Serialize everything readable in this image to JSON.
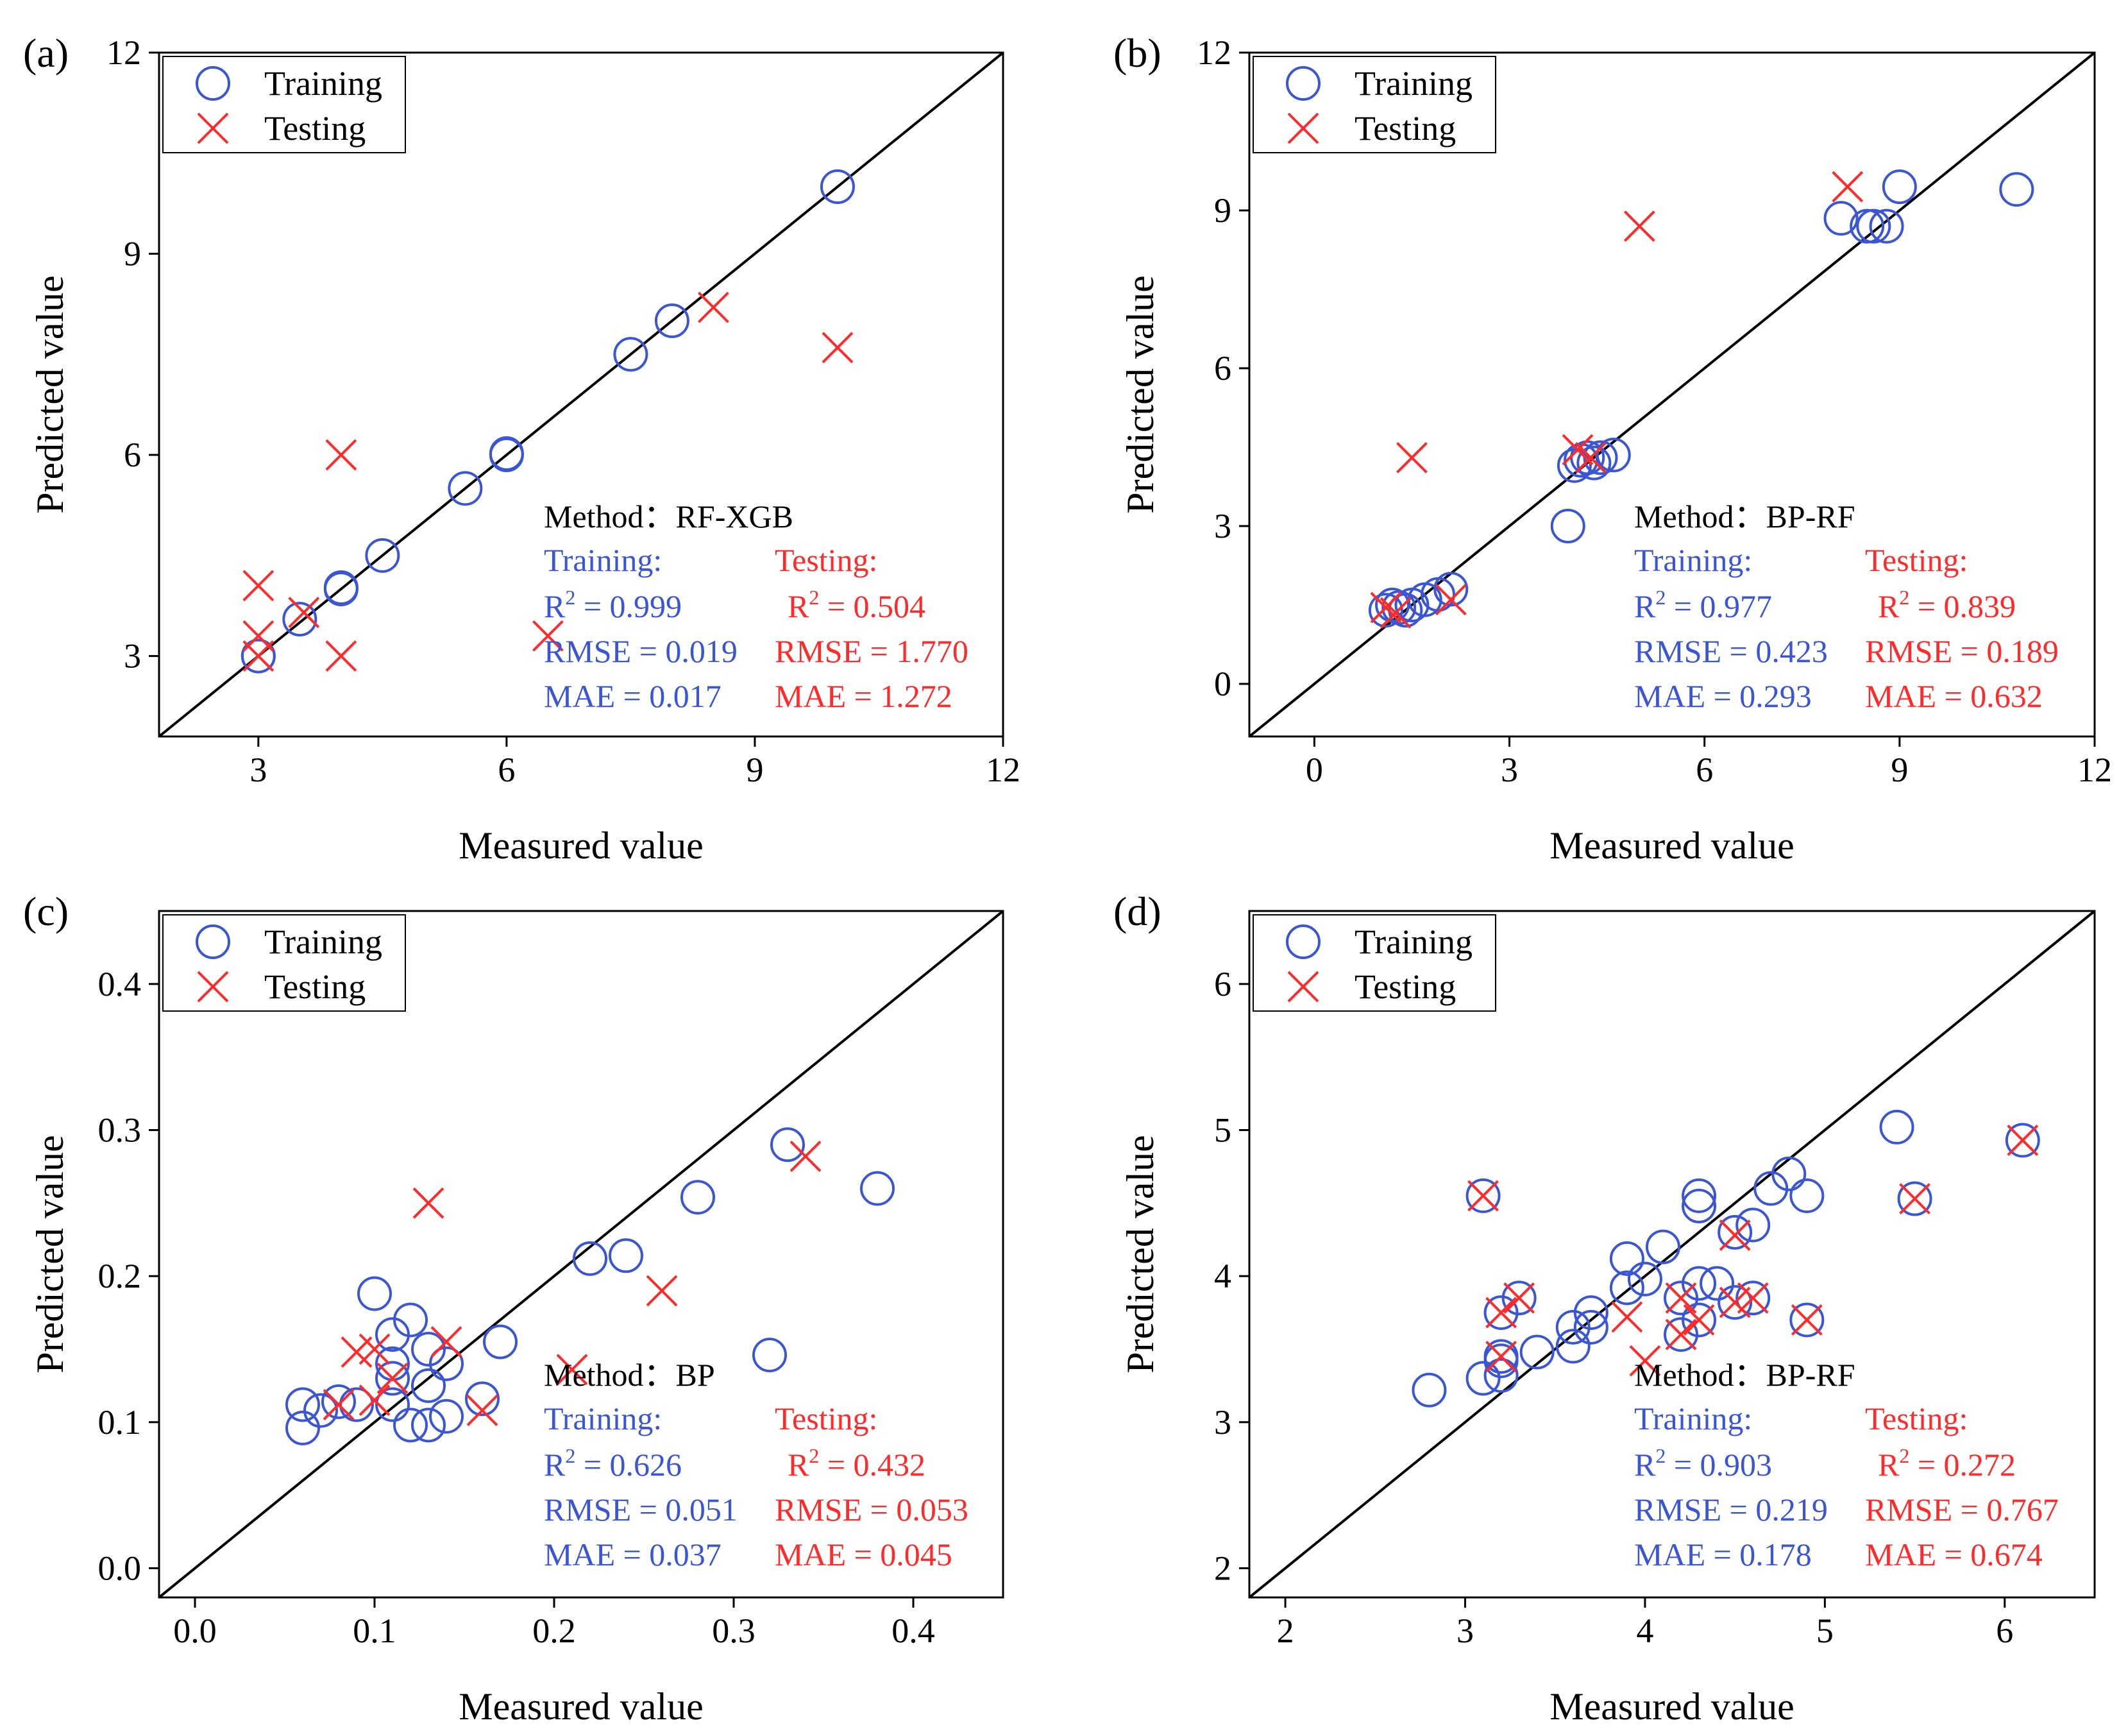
{
  "colors": {
    "training": "#3a56d4",
    "testing": "#ff2a2a",
    "axis": "#000000"
  },
  "chart_data": [
    {
      "type": "scatter",
      "panel_label": "(a)",
      "method_label": "Method：",
      "method": "RF-XGB",
      "xlabel": "Measured value",
      "ylabel": "Predicted value",
      "xlim": [
        1.8,
        12
      ],
      "ylim": [
        1.8,
        12
      ],
      "xticks": [
        3,
        6,
        9,
        12
      ],
      "yticks": [
        3,
        6,
        9,
        12
      ],
      "xtick_labels": [
        "3",
        "6",
        "9",
        "12"
      ],
      "ytick_labels": [
        "3",
        "6",
        "9",
        "12"
      ],
      "legend": {
        "training": "Training",
        "testing": "Testing"
      },
      "stats": {
        "training_title": "Training:",
        "testing_title": "Testing:",
        "training": [
          "R² = 0.999",
          "RMSE = 0.019",
          "MAE = 0.017"
        ],
        "testing": [
          "R² = 0.504",
          "RMSE = 1.770",
          "MAE = 1.272"
        ]
      },
      "training_points": [
        [
          3,
          3
        ],
        [
          3,
          3
        ],
        [
          3.5,
          3.55
        ],
        [
          4,
          4
        ],
        [
          4,
          4.02
        ],
        [
          4.5,
          4.5
        ],
        [
          5.5,
          5.5
        ],
        [
          6,
          6
        ],
        [
          6,
          6.02
        ],
        [
          7.5,
          7.5
        ],
        [
          8,
          8
        ],
        [
          10,
          10
        ]
      ],
      "testing_points": [
        [
          3,
          4.05
        ],
        [
          3,
          3.3
        ],
        [
          3,
          3
        ],
        [
          3.55,
          3.65
        ],
        [
          4,
          6
        ],
        [
          4,
          3
        ],
        [
          6.5,
          3.3
        ],
        [
          8.5,
          8.2
        ],
        [
          10,
          7.6
        ]
      ]
    },
    {
      "type": "scatter",
      "panel_label": "(b)",
      "method_label": "Method：",
      "method": "BP-RF",
      "xlabel": "Measured value",
      "ylabel": "Predicted value",
      "xlim": [
        -1,
        12
      ],
      "ylim": [
        -1,
        12
      ],
      "xticks": [
        0,
        3,
        6,
        9,
        12
      ],
      "yticks": [
        0,
        3,
        6,
        9,
        12
      ],
      "xtick_labels": [
        "0",
        "3",
        "6",
        "9",
        "12"
      ],
      "ytick_labels": [
        "0",
        "3",
        "6",
        "9",
        "12"
      ],
      "legend": {
        "training": "Training",
        "testing": "Testing"
      },
      "stats": {
        "training_title": "Training:",
        "testing_title": "Testing:",
        "training": [
          "R² = 0.977",
          "RMSE = 0.423",
          "MAE = 0.293"
        ],
        "testing": [
          "R² = 0.839",
          "RMSE = 0.189",
          "MAE = 0.632"
        ]
      },
      "training_points": [
        [
          1.1,
          1.4
        ],
        [
          1.2,
          1.5
        ],
        [
          1.3,
          1.45
        ],
        [
          1.4,
          1.4
        ],
        [
          1.5,
          1.5
        ],
        [
          1.7,
          1.6
        ],
        [
          1.9,
          1.7
        ],
        [
          2.1,
          1.8
        ],
        [
          3.9,
          3.0
        ],
        [
          4.0,
          4.15
        ],
        [
          4.1,
          4.25
        ],
        [
          4.2,
          4.3
        ],
        [
          4.3,
          4.2
        ],
        [
          4.4,
          4.3
        ],
        [
          4.6,
          4.35
        ],
        [
          8.1,
          8.85
        ],
        [
          8.5,
          8.7
        ],
        [
          8.6,
          8.7
        ],
        [
          8.8,
          8.7
        ],
        [
          9.0,
          9.45
        ],
        [
          10.8,
          9.4
        ]
      ],
      "testing_points": [
        [
          1.1,
          1.45
        ],
        [
          1.25,
          1.35
        ],
        [
          1.5,
          4.3
        ],
        [
          2.1,
          1.6
        ],
        [
          4.05,
          4.45
        ],
        [
          4.25,
          4.3
        ],
        [
          5.0,
          8.7
        ],
        [
          8.2,
          9.45
        ]
      ]
    },
    {
      "type": "scatter",
      "panel_label": "(c)",
      "method_label": "Method：",
      "method": "BP",
      "xlabel": "Measured value",
      "ylabel": "Predicted value",
      "xlim": [
        -0.02,
        0.45
      ],
      "ylim": [
        -0.02,
        0.45
      ],
      "xticks": [
        0.0,
        0.1,
        0.2,
        0.3,
        0.4
      ],
      "yticks": [
        0.0,
        0.1,
        0.2,
        0.3,
        0.4
      ],
      "xtick_labels": [
        "0.0",
        "0.1",
        "0.2",
        "0.3",
        "0.4"
      ],
      "ytick_labels": [
        "0.0",
        "0.1",
        "0.2",
        "0.3",
        "0.4"
      ],
      "legend": {
        "training": "Training",
        "testing": "Testing"
      },
      "stats": {
        "training_title": "Training:",
        "testing_title": "Testing:",
        "training": [
          "R² = 0.626",
          "RMSE = 0.051",
          "MAE = 0.037"
        ],
        "testing": [
          "R² = 0.432",
          "RMSE = 0.053",
          "MAE = 0.045"
        ]
      },
      "training_points": [
        [
          0.06,
          0.112
        ],
        [
          0.06,
          0.096
        ],
        [
          0.07,
          0.108
        ],
        [
          0.08,
          0.114
        ],
        [
          0.09,
          0.112
        ],
        [
          0.1,
          0.188
        ],
        [
          0.11,
          0.16
        ],
        [
          0.11,
          0.14
        ],
        [
          0.11,
          0.13
        ],
        [
          0.11,
          0.112
        ],
        [
          0.12,
          0.17
        ],
        [
          0.12,
          0.098
        ],
        [
          0.13,
          0.15
        ],
        [
          0.13,
          0.125
        ],
        [
          0.13,
          0.098
        ],
        [
          0.14,
          0.14
        ],
        [
          0.14,
          0.104
        ],
        [
          0.16,
          0.116
        ],
        [
          0.17,
          0.155
        ],
        [
          0.22,
          0.212
        ],
        [
          0.24,
          0.214
        ],
        [
          0.28,
          0.254
        ],
        [
          0.32,
          0.146
        ],
        [
          0.33,
          0.29
        ],
        [
          0.38,
          0.26
        ]
      ],
      "testing_points": [
        [
          0.08,
          0.112
        ],
        [
          0.09,
          0.148
        ],
        [
          0.1,
          0.15
        ],
        [
          0.1,
          0.115
        ],
        [
          0.11,
          0.13
        ],
        [
          0.13,
          0.25
        ],
        [
          0.14,
          0.155
        ],
        [
          0.16,
          0.108
        ],
        [
          0.21,
          0.136
        ],
        [
          0.26,
          0.19
        ],
        [
          0.34,
          0.282
        ]
      ]
    },
    {
      "type": "scatter",
      "panel_label": "(d)",
      "method_label": "Method：",
      "method": "BP-RF",
      "xlabel": "Measured value",
      "ylabel": "Predicted value",
      "xlim": [
        1.8,
        6.5
      ],
      "ylim": [
        1.8,
        6.5
      ],
      "xticks": [
        2,
        3,
        4,
        5,
        6
      ],
      "yticks": [
        2,
        3,
        4,
        5,
        6
      ],
      "xtick_labels": [
        "2",
        "3",
        "4",
        "5",
        "6"
      ],
      "ytick_labels": [
        "2",
        "3",
        "4",
        "5",
        "6"
      ],
      "legend": {
        "training": "Training",
        "testing": "Testing"
      },
      "stats": {
        "training_title": "Training:",
        "testing_title": "Testing:",
        "training": [
          "R² = 0.903",
          "RMSE = 0.219",
          "MAE = 0.178"
        ],
        "testing": [
          "R² = 0.272",
          "RMSE = 0.767",
          "MAE = 0.674"
        ]
      },
      "training_points": [
        [
          2.8,
          3.22
        ],
        [
          3.1,
          3.3
        ],
        [
          3.1,
          4.55
        ],
        [
          3.2,
          3.45
        ],
        [
          3.2,
          3.42
        ],
        [
          3.2,
          3.32
        ],
        [
          3.2,
          3.75
        ],
        [
          3.3,
          3.85
        ],
        [
          3.4,
          3.48
        ],
        [
          3.6,
          3.52
        ],
        [
          3.6,
          3.65
        ],
        [
          3.7,
          3.65
        ],
        [
          3.7,
          3.75
        ],
        [
          3.9,
          3.92
        ],
        [
          3.9,
          4.12
        ],
        [
          4.0,
          3.98
        ],
        [
          4.1,
          4.2
        ],
        [
          4.2,
          3.85
        ],
        [
          4.2,
          3.6
        ],
        [
          4.3,
          3.7
        ],
        [
          4.3,
          3.95
        ],
        [
          4.3,
          4.48
        ],
        [
          4.3,
          4.55
        ],
        [
          4.4,
          3.95
        ],
        [
          4.5,
          3.82
        ],
        [
          4.5,
          4.3
        ],
        [
          4.6,
          4.35
        ],
        [
          4.6,
          3.85
        ],
        [
          4.7,
          4.6
        ],
        [
          4.8,
          4.7
        ],
        [
          4.9,
          4.55
        ],
        [
          4.9,
          3.7
        ],
        [
          5.4,
          5.02
        ],
        [
          5.5,
          4.53
        ],
        [
          6.1,
          4.93
        ]
      ],
      "testing_points": [
        [
          3.1,
          4.55
        ],
        [
          3.2,
          3.75
        ],
        [
          3.2,
          3.45
        ],
        [
          3.3,
          3.85
        ],
        [
          3.9,
          3.72
        ],
        [
          4.0,
          3.42
        ],
        [
          4.2,
          3.85
        ],
        [
          4.2,
          3.6
        ],
        [
          4.3,
          3.7
        ],
        [
          4.5,
          4.28
        ],
        [
          4.5,
          3.82
        ],
        [
          4.6,
          3.85
        ],
        [
          4.9,
          3.7
        ],
        [
          5.5,
          4.53
        ],
        [
          6.1,
          4.93
        ]
      ]
    }
  ]
}
